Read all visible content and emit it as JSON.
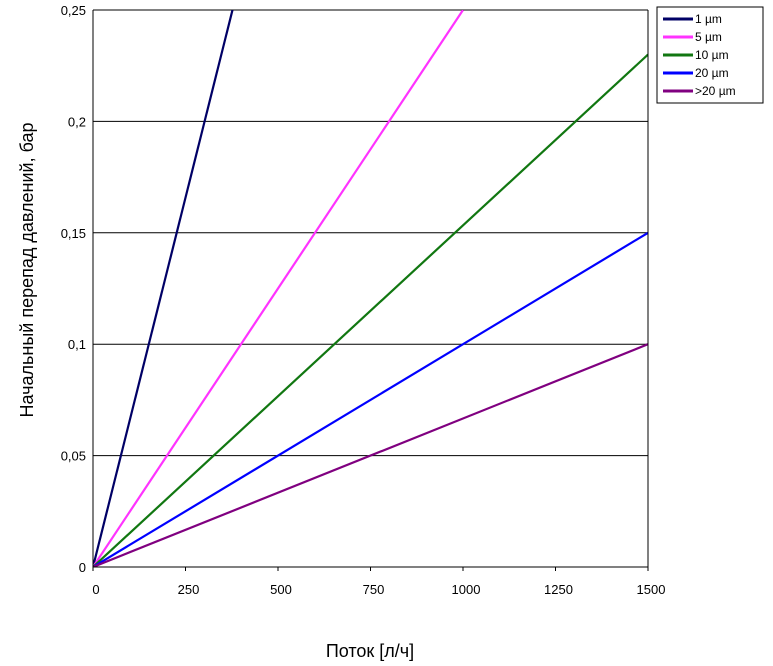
{
  "chart_data": {
    "type": "line",
    "title": "",
    "xlabel": "Поток [л/ч]",
    "ylabel": "Начальный перепад давлений, бар",
    "xlim": [
      0,
      1500
    ],
    "ylim": [
      0,
      0.25
    ],
    "x_ticks": [
      "0",
      "250",
      "500",
      "750",
      "1000",
      "1250",
      "1500"
    ],
    "y_ticks": [
      "0",
      "0,05",
      "0,1",
      "0,15",
      "0,2",
      "0,25"
    ],
    "grid": "horizontal",
    "legend_position": "top-right",
    "series": [
      {
        "name": "1 µm",
        "color": "#000066",
        "x": [
          0,
          377
        ],
        "y": [
          0,
          0.25
        ]
      },
      {
        "name": "5 µm",
        "color": "#ff33ff",
        "x": [
          0,
          1000
        ],
        "y": [
          0,
          0.25
        ]
      },
      {
        "name": "10 µm",
        "color": "#117711",
        "x": [
          0,
          1500
        ],
        "y": [
          0,
          0.23
        ]
      },
      {
        "name": "20 µm",
        "color": "#0000ff",
        "x": [
          0,
          1500
        ],
        "y": [
          0,
          0.15
        ]
      },
      {
        "name": ">20 µm",
        "color": "#800080",
        "x": [
          0,
          1500
        ],
        "y": [
          0,
          0.1
        ]
      }
    ]
  }
}
